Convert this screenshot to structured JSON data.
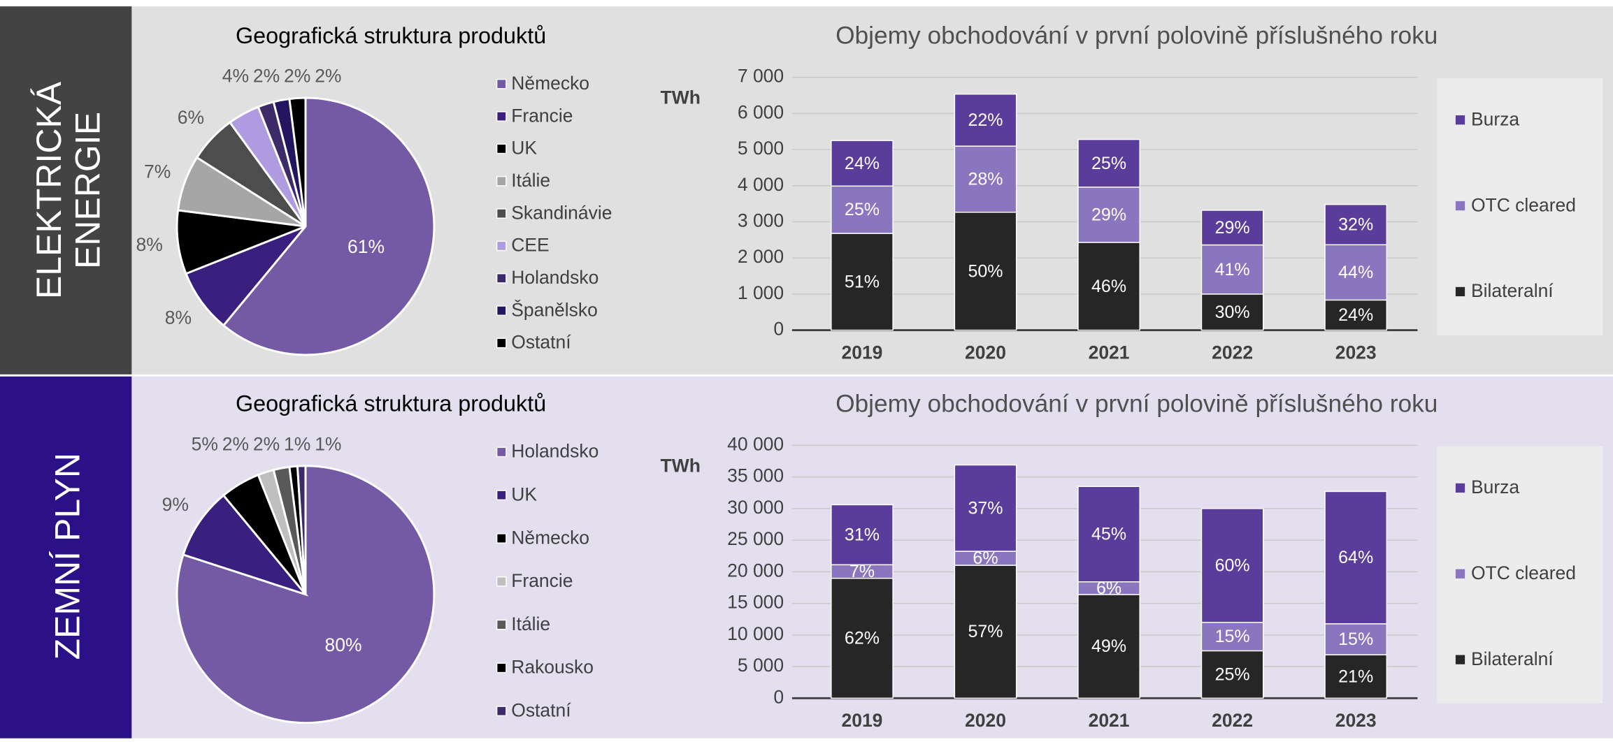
{
  "sections": [
    {
      "label": [
        "ELEKTRICKÁ",
        "ENERGIE"
      ]
    },
    {
      "label": [
        "ZEMNÍ PLYN"
      ]
    }
  ],
  "chart_data": [
    {
      "type": "pie",
      "title": "Geografická struktura produktů",
      "categories": [
        "Německo",
        "Francie",
        "UK",
        "Itálie",
        "Skandinávie",
        "CEE",
        "Holandsko",
        "Španělsko",
        "Ostatní"
      ],
      "values": [
        61,
        8,
        8,
        7,
        6,
        4,
        2,
        2,
        2
      ],
      "colors": [
        "#7459a5",
        "#3b1f7e",
        "#000000",
        "#a6a6a6",
        "#4d4d4d",
        "#b09be0",
        "#3d2a68",
        "#231560",
        "#000000"
      ]
    },
    {
      "type": "bar",
      "stacked": true,
      "title": "Objemy obchodování v první polovině příslušného roku",
      "y_label": "TWh",
      "categories": [
        "2019",
        "2020",
        "2021",
        "2022",
        "2023"
      ],
      "ylim": [
        0,
        7000
      ],
      "yticks": [
        0,
        {
          "value": 1000,
          "label": "1 000"
        },
        {
          "value": 2000,
          "label": "2 000"
        },
        {
          "value": 3000,
          "label": "3 000"
        },
        {
          "value": 4000,
          "label": "4 000"
        },
        {
          "value": 5000,
          "label": "5 000"
        },
        {
          "value": 6000,
          "label": "6 000"
        },
        {
          "value": 7000,
          "label": "7 000"
        }
      ],
      "grid": true,
      "legend": "right",
      "series": [
        {
          "name": "Bilateralní",
          "color": "#262626",
          "values": [
            2680,
            3265,
            2430,
            1000,
            835
          ],
          "share_labels": [
            "51%",
            "50%",
            "46%",
            "30%",
            "24%"
          ]
        },
        {
          "name": "OTC cleared",
          "color": "#8a76bf",
          "values": [
            1310,
            1830,
            1530,
            1360,
            1530
          ],
          "share_labels": [
            "25%",
            "28%",
            "29%",
            "41%",
            "44%"
          ]
        },
        {
          "name": "Burza",
          "color": "#5a3d9a",
          "values": [
            1260,
            1440,
            1320,
            960,
            1115
          ],
          "share_labels": [
            "24%",
            "22%",
            "25%",
            "29%",
            "32%"
          ]
        }
      ]
    },
    {
      "type": "pie",
      "title": "Geografická struktura produktů",
      "categories": [
        "Holandsko",
        "UK",
        "Německo",
        "Francie",
        "Itálie",
        "Rakousko",
        "Ostatní"
      ],
      "values": [
        80,
        9,
        5,
        2,
        2,
        1,
        1
      ],
      "colors": [
        "#7459a5",
        "#3b1f7e",
        "#000000",
        "#bfbfbf",
        "#595959",
        "#000000",
        "#3d2a68"
      ]
    },
    {
      "type": "bar",
      "stacked": true,
      "title": "Objemy obchodování v první polovině příslušného roku",
      "y_label": "TWh",
      "categories": [
        "2019",
        "2020",
        "2021",
        "2022",
        "2023"
      ],
      "ylim": [
        0,
        40000
      ],
      "yticks": [
        0,
        {
          "value": 5000,
          "label": "5 000"
        },
        {
          "value": 10000,
          "label": "10 000"
        },
        {
          "value": 15000,
          "label": "15 000"
        },
        {
          "value": 20000,
          "label": "20 000"
        },
        {
          "value": 25000,
          "label": "25 000"
        },
        {
          "value": 30000,
          "label": "30 000"
        },
        {
          "value": 35000,
          "label": "35 000"
        },
        {
          "value": 40000,
          "label": "40 000"
        }
      ],
      "grid": true,
      "legend": "right",
      "series": [
        {
          "name": "Bilateralní",
          "color": "#262626",
          "values": [
            18970,
            21030,
            16400,
            7500,
            6870
          ],
          "share_labels": [
            "62%",
            "57%",
            "49%",
            "25%",
            "21%"
          ]
        },
        {
          "name": "OTC cleared",
          "color": "#8a76bf",
          "values": [
            2140,
            2210,
            2010,
            4500,
            4900
          ],
          "share_labels": [
            "7%",
            "6%",
            "6%",
            "15%",
            "15%"
          ]
        },
        {
          "name": "Burza",
          "color": "#5a3d9a",
          "values": [
            9490,
            13650,
            15080,
            18000,
            20930
          ],
          "share_labels": [
            "31%",
            "37%",
            "45%",
            "60%",
            "64%"
          ]
        }
      ]
    }
  ]
}
